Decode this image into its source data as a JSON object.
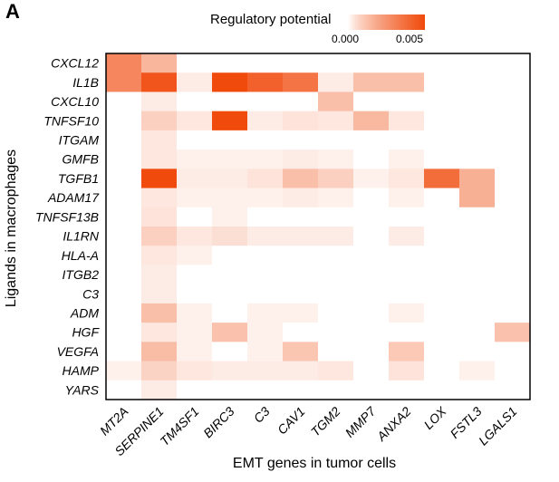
{
  "panel_label": "A",
  "chart_data": {
    "type": "heatmap",
    "legend": {
      "title": "Regulatory potential",
      "min_label": "0.000",
      "max_label": "0.005",
      "range": [
        0,
        0.006
      ],
      "color_low": "#ffffff",
      "color_high": "#f04a0c"
    },
    "xlabel": "EMT genes in tumor cells",
    "ylabel": "Ligands in macrophages",
    "columns": [
      "MT2A",
      "SERPINE1",
      "TM4SF1",
      "BIRC3",
      "C3",
      "CAV1",
      "TGM2",
      "MMP7",
      "ANXA2",
      "LOX",
      "FSTL3",
      "LGALS1"
    ],
    "rows": [
      "CXCL12",
      "IL1B",
      "CXCL10",
      "TNFSF10",
      "ITGAM",
      "GMFB",
      "TGFB1",
      "ADAM17",
      "TNFSF13B",
      "IL1RN",
      "HLA-A",
      "ITGB2",
      "C3",
      "ADM",
      "HGF",
      "VEGFA",
      "HAMP",
      "YARS"
    ],
    "values": [
      [
        0.0035,
        0.0018,
        0,
        0,
        0,
        0,
        0,
        0,
        0,
        0,
        0,
        0
      ],
      [
        0.0035,
        0.0055,
        0.0003,
        0.0065,
        0.005,
        0.0042,
        0.0003,
        0.0015,
        0.0015,
        0,
        0,
        0
      ],
      [
        0,
        0.0003,
        0,
        0,
        0,
        0,
        0.0015,
        0,
        0,
        0,
        0,
        0
      ],
      [
        0,
        0.001,
        0.0004,
        0.006,
        0.0003,
        0.0005,
        0.0004,
        0.0017,
        0.0004,
        0,
        0,
        0
      ],
      [
        0,
        0.0004,
        0,
        0,
        0,
        0,
        0,
        0,
        0,
        0,
        0,
        0
      ],
      [
        0,
        0.0004,
        0.0002,
        0.0002,
        0.0002,
        0.0003,
        0.0002,
        0,
        0.0002,
        0,
        0,
        0
      ],
      [
        0,
        0.006,
        0.0003,
        0.0003,
        0.0005,
        0.0015,
        0.001,
        0.0002,
        0.0004,
        0.0045,
        0.002,
        0
      ],
      [
        0,
        0.0004,
        0.0002,
        0.0002,
        0.0002,
        0.0003,
        0.0002,
        0,
        0.0002,
        0,
        0.002,
        0
      ],
      [
        0,
        0.0005,
        0,
        0.0002,
        0,
        0,
        0,
        0,
        0,
        0,
        0,
        0
      ],
      [
        0,
        0.001,
        0.0004,
        0.0006,
        0.0003,
        0.0003,
        0.0003,
        0,
        0.0003,
        0,
        0,
        0
      ],
      [
        0,
        0.0004,
        0.0002,
        0,
        0,
        0,
        0,
        0,
        0,
        0,
        0,
        0
      ],
      [
        0,
        0.0003,
        0,
        0,
        0,
        0,
        0,
        0,
        0,
        0,
        0,
        0
      ],
      [
        0,
        0.0003,
        0,
        0,
        0,
        0,
        0,
        0,
        0,
        0,
        0,
        0
      ],
      [
        0,
        0.0015,
        0.0002,
        0,
        0.0002,
        0.0002,
        0,
        0,
        0.0002,
        0,
        0,
        0
      ],
      [
        0,
        0.0004,
        0.0002,
        0.0014,
        0.0002,
        0,
        0,
        0,
        0,
        0,
        0,
        0.0014
      ],
      [
        0,
        0.0016,
        0.0002,
        0,
        0.0002,
        0.0013,
        0,
        0,
        0.0012,
        0,
        0,
        0
      ],
      [
        0.0002,
        0.0009,
        0.0004,
        0.0003,
        0.0003,
        0.0003,
        0.0004,
        0,
        0.0005,
        0,
        0.0002,
        0
      ],
      [
        0,
        0.0003,
        0,
        0,
        0,
        0,
        0,
        0,
        0,
        0,
        0,
        0
      ]
    ]
  }
}
